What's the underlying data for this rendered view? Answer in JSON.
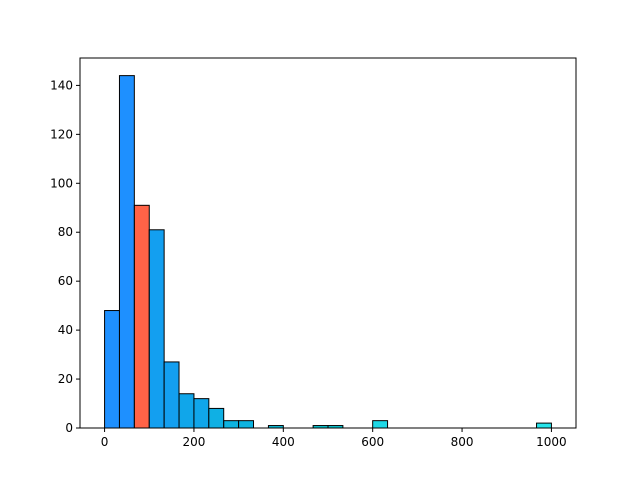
{
  "chart_data": {
    "type": "bar",
    "title": "",
    "xlabel": "",
    "ylabel": "",
    "xlim": [
      -55,
      1055
    ],
    "ylim": [
      0,
      151.2
    ],
    "xticks": [
      0,
      200,
      400,
      600,
      800,
      1000
    ],
    "yticks": [
      0,
      20,
      40,
      60,
      80,
      100,
      120,
      140
    ],
    "bin_width": 33.3,
    "bins": [
      {
        "x0": 0.0,
        "count": 48,
        "color": "#1e90ff"
      },
      {
        "x0": 33.3,
        "count": 144,
        "color": "#1e90ff"
      },
      {
        "x0": 66.7,
        "count": 91,
        "color": "#ff6347"
      },
      {
        "x0": 100.0,
        "count": 81,
        "color": "#139ff0"
      },
      {
        "x0": 133.3,
        "count": 27,
        "color": "#139ff0"
      },
      {
        "x0": 166.7,
        "count": 14,
        "color": "#10a6ea"
      },
      {
        "x0": 200.0,
        "count": 12,
        "color": "#10a6ea"
      },
      {
        "x0": 233.3,
        "count": 8,
        "color": "#0fb0e4"
      },
      {
        "x0": 266.7,
        "count": 3,
        "color": "#0db3e0"
      },
      {
        "x0": 300.0,
        "count": 3,
        "color": "#0db3e0"
      },
      {
        "x0": 333.3,
        "count": 0,
        "color": "#0cb8dd"
      },
      {
        "x0": 366.7,
        "count": 1,
        "color": "#0cbdd8"
      },
      {
        "x0": 400.0,
        "count": 0,
        "color": "#0cbdd8"
      },
      {
        "x0": 433.3,
        "count": 0,
        "color": "#0cbdd8"
      },
      {
        "x0": 466.7,
        "count": 1,
        "color": "#0ac7d2"
      },
      {
        "x0": 500.0,
        "count": 1,
        "color": "#0ac7d2"
      },
      {
        "x0": 533.3,
        "count": 0,
        "color": "#0ac7d2"
      },
      {
        "x0": 566.7,
        "count": 0,
        "color": "#0ac7d2"
      },
      {
        "x0": 600.0,
        "count": 3,
        "color": "#1ed8e6"
      },
      {
        "x0": 633.3,
        "count": 0,
        "color": "#1ed8e6"
      },
      {
        "x0": 666.7,
        "count": 0,
        "color": "#1ed8e6"
      },
      {
        "x0": 700.0,
        "count": 0,
        "color": "#1ed8e6"
      },
      {
        "x0": 733.3,
        "count": 0,
        "color": "#1ed8e6"
      },
      {
        "x0": 766.7,
        "count": 0,
        "color": "#1ed8e6"
      },
      {
        "x0": 800.0,
        "count": 0,
        "color": "#1ed8e6"
      },
      {
        "x0": 833.3,
        "count": 0,
        "color": "#1ed8e6"
      },
      {
        "x0": 866.7,
        "count": 0,
        "color": "#1ed8e6"
      },
      {
        "x0": 900.0,
        "count": 0,
        "color": "#1ed8e6"
      },
      {
        "x0": 933.3,
        "count": 0,
        "color": "#1ed8e6"
      },
      {
        "x0": 966.7,
        "count": 2,
        "color": "#26e4ea"
      }
    ],
    "edge_color": "#000000",
    "grid": false,
    "legend": "none"
  }
}
